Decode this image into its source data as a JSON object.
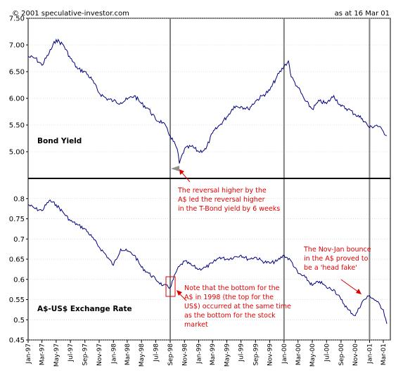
{
  "header": {
    "copyright": "© 2001 speculative-investor.com",
    "as_at": "as at 16 Mar 01"
  },
  "chart_data": [
    {
      "type": "line",
      "panel": "top",
      "label": "Bond Yield",
      "ylim": [
        4.5,
        7.5
      ],
      "yticks": [
        "7.50",
        "7.00",
        "6.50",
        "6.00",
        "5.50",
        "5.00"
      ],
      "color": "#000080",
      "series": [
        {
          "x": [
            "1997-01-01",
            "1997-02-01",
            "1997-03-01",
            "1997-04-01",
            "1997-05-01",
            "1997-06-01",
            "1997-07-01",
            "1997-08-01",
            "1997-09-01",
            "1997-10-01",
            "1997-11-01",
            "1997-12-01",
            "1998-01-01",
            "1998-02-01",
            "1998-03-01",
            "1998-04-01",
            "1998-05-01",
            "1998-06-01",
            "1998-07-01",
            "1998-08-01",
            "1998-09-01",
            "1998-10-01",
            "1998-10-10",
            "1998-11-01",
            "1998-12-01",
            "1999-01-01",
            "1999-02-01",
            "1999-03-01",
            "1999-04-01",
            "1999-05-01",
            "1999-06-01",
            "1999-07-01",
            "1999-08-01",
            "1999-09-01",
            "1999-10-01",
            "1999-11-01",
            "1999-12-01",
            "2000-01-01",
            "2000-01-20",
            "2000-02-01",
            "2000-03-01",
            "2000-04-01",
            "2000-05-01",
            "2000-06-01",
            "2000-07-01",
            "2000-08-01",
            "2000-09-01",
            "2000-10-01",
            "2000-11-01",
            "2000-12-01",
            "2001-01-01",
            "2001-02-01",
            "2001-03-01",
            "2001-03-16"
          ],
          "values": [
            6.78,
            6.75,
            6.62,
            6.85,
            7.1,
            7.0,
            6.75,
            6.55,
            6.5,
            6.35,
            6.1,
            6.0,
            5.95,
            5.92,
            5.98,
            6.05,
            5.9,
            5.8,
            5.6,
            5.55,
            5.3,
            5.05,
            4.78,
            5.05,
            5.1,
            5.0,
            5.05,
            5.35,
            5.5,
            5.65,
            5.85,
            5.85,
            5.8,
            5.95,
            6.05,
            6.15,
            6.4,
            6.6,
            6.7,
            6.4,
            6.2,
            5.95,
            5.8,
            5.95,
            5.9,
            6.05,
            5.85,
            5.8,
            5.7,
            5.62,
            5.45,
            5.5,
            5.38,
            5.3
          ]
        }
      ]
    },
    {
      "type": "line",
      "panel": "bottom",
      "label": "A$-US$ Exchange Rate",
      "ylim": [
        0.45,
        0.85
      ],
      "yticks": [
        "0.8",
        "0.75",
        "0.7",
        "0.65",
        "0.6",
        "0.55",
        "0.5",
        "0.45"
      ],
      "color": "#000080",
      "series": [
        {
          "x": [
            "1997-01-01",
            "1997-02-01",
            "1997-03-01",
            "1997-04-01",
            "1997-05-01",
            "1997-06-01",
            "1997-07-01",
            "1997-08-01",
            "1997-09-01",
            "1997-10-01",
            "1997-11-01",
            "1997-12-01",
            "1998-01-01",
            "1998-02-01",
            "1998-03-01",
            "1998-04-01",
            "1998-05-01",
            "1998-06-01",
            "1998-07-01",
            "1998-08-01",
            "1998-09-01",
            "1998-10-01",
            "1998-11-01",
            "1998-12-01",
            "1999-01-01",
            "1999-02-01",
            "1999-03-01",
            "1999-04-01",
            "1999-05-01",
            "1999-06-01",
            "1999-07-01",
            "1999-08-01",
            "1999-09-01",
            "1999-10-01",
            "1999-11-01",
            "1999-12-01",
            "2000-01-01",
            "2000-02-01",
            "2000-03-01",
            "2000-04-01",
            "2000-05-01",
            "2000-06-01",
            "2000-07-01",
            "2000-08-01",
            "2000-09-01",
            "2000-10-01",
            "2000-11-01",
            "2000-12-01",
            "2001-01-01",
            "2001-02-01",
            "2001-03-01",
            "2001-03-16"
          ],
          "values": [
            0.785,
            0.775,
            0.77,
            0.795,
            0.785,
            0.765,
            0.745,
            0.735,
            0.725,
            0.705,
            0.68,
            0.66,
            0.635,
            0.675,
            0.67,
            0.66,
            0.63,
            0.615,
            0.6,
            0.585,
            0.58,
            0.625,
            0.645,
            0.635,
            0.625,
            0.63,
            0.64,
            0.655,
            0.65,
            0.655,
            0.66,
            0.65,
            0.655,
            0.645,
            0.64,
            0.645,
            0.66,
            0.645,
            0.615,
            0.605,
            0.585,
            0.595,
            0.58,
            0.575,
            0.55,
            0.525,
            0.51,
            0.545,
            0.56,
            0.545,
            0.525,
            0.49
          ]
        }
      ]
    }
  ],
  "x_axis": {
    "range": [
      "1997-01-01",
      "2001-03-31"
    ],
    "ticks": [
      {
        "label": "Jan-97",
        "date": "1997-01-01"
      },
      {
        "label": "Mar-97",
        "date": "1997-03-01"
      },
      {
        "label": "May-97",
        "date": "1997-05-01"
      },
      {
        "label": "Jul-97",
        "date": "1997-07-01"
      },
      {
        "label": "Sep-97",
        "date": "1997-09-01"
      },
      {
        "label": "Nov-97",
        "date": "1997-11-01"
      },
      {
        "label": "Jan-98",
        "date": "1998-01-01"
      },
      {
        "label": "Mar-98",
        "date": "1998-03-01"
      },
      {
        "label": "May-98",
        "date": "1998-05-01"
      },
      {
        "label": "Jul-98",
        "date": "1998-07-01"
      },
      {
        "label": "Sep-98",
        "date": "1998-09-01"
      },
      {
        "label": "Nov-98",
        "date": "1998-11-01"
      },
      {
        "label": "Jan-99",
        "date": "1999-01-01"
      },
      {
        "label": "Mar-99",
        "date": "1999-03-01"
      },
      {
        "label": "May-99",
        "date": "1999-05-01"
      },
      {
        "label": "Jul-99",
        "date": "1999-07-01"
      },
      {
        "label": "Sep-99",
        "date": "1999-09-01"
      },
      {
        "label": "Nov-99",
        "date": "1999-11-01"
      },
      {
        "label": "Jan-00",
        "date": "2000-01-01"
      },
      {
        "label": "Mar-00",
        "date": "2000-03-01"
      },
      {
        "label": "May-00",
        "date": "2000-05-01"
      },
      {
        "label": "Jul-00",
        "date": "2000-07-01"
      },
      {
        "label": "Sep-00",
        "date": "2000-09-01"
      },
      {
        "label": "Nov-00",
        "date": "2000-11-01"
      },
      {
        "label": "Jan-01",
        "date": "2001-01-01"
      },
      {
        "label": "Mar-01",
        "date": "2001-03-01"
      }
    ]
  },
  "vertical_markers": [
    "1998-09-01",
    "2000-01-01",
    "2001-01-01"
  ],
  "annotations": {
    "reversal": [
      "The reversal higher by the",
      "A$ led the reversal higher",
      "in the T-Bond yield by 6 weeks"
    ],
    "bottom": [
      "Note that the bottom for the",
      "A$ in 1998 (the top for the",
      "US$) occurred at the same time",
      "as the bottom for the stock",
      "market"
    ],
    "head_fake": [
      "The Nov-Jan bounce",
      "in the A$ proved to",
      "be a 'head fake'"
    ]
  },
  "colors": {
    "series": "#000080",
    "annotation": "#e00000",
    "marker": "#808080",
    "grid": "#c0c0c0"
  }
}
